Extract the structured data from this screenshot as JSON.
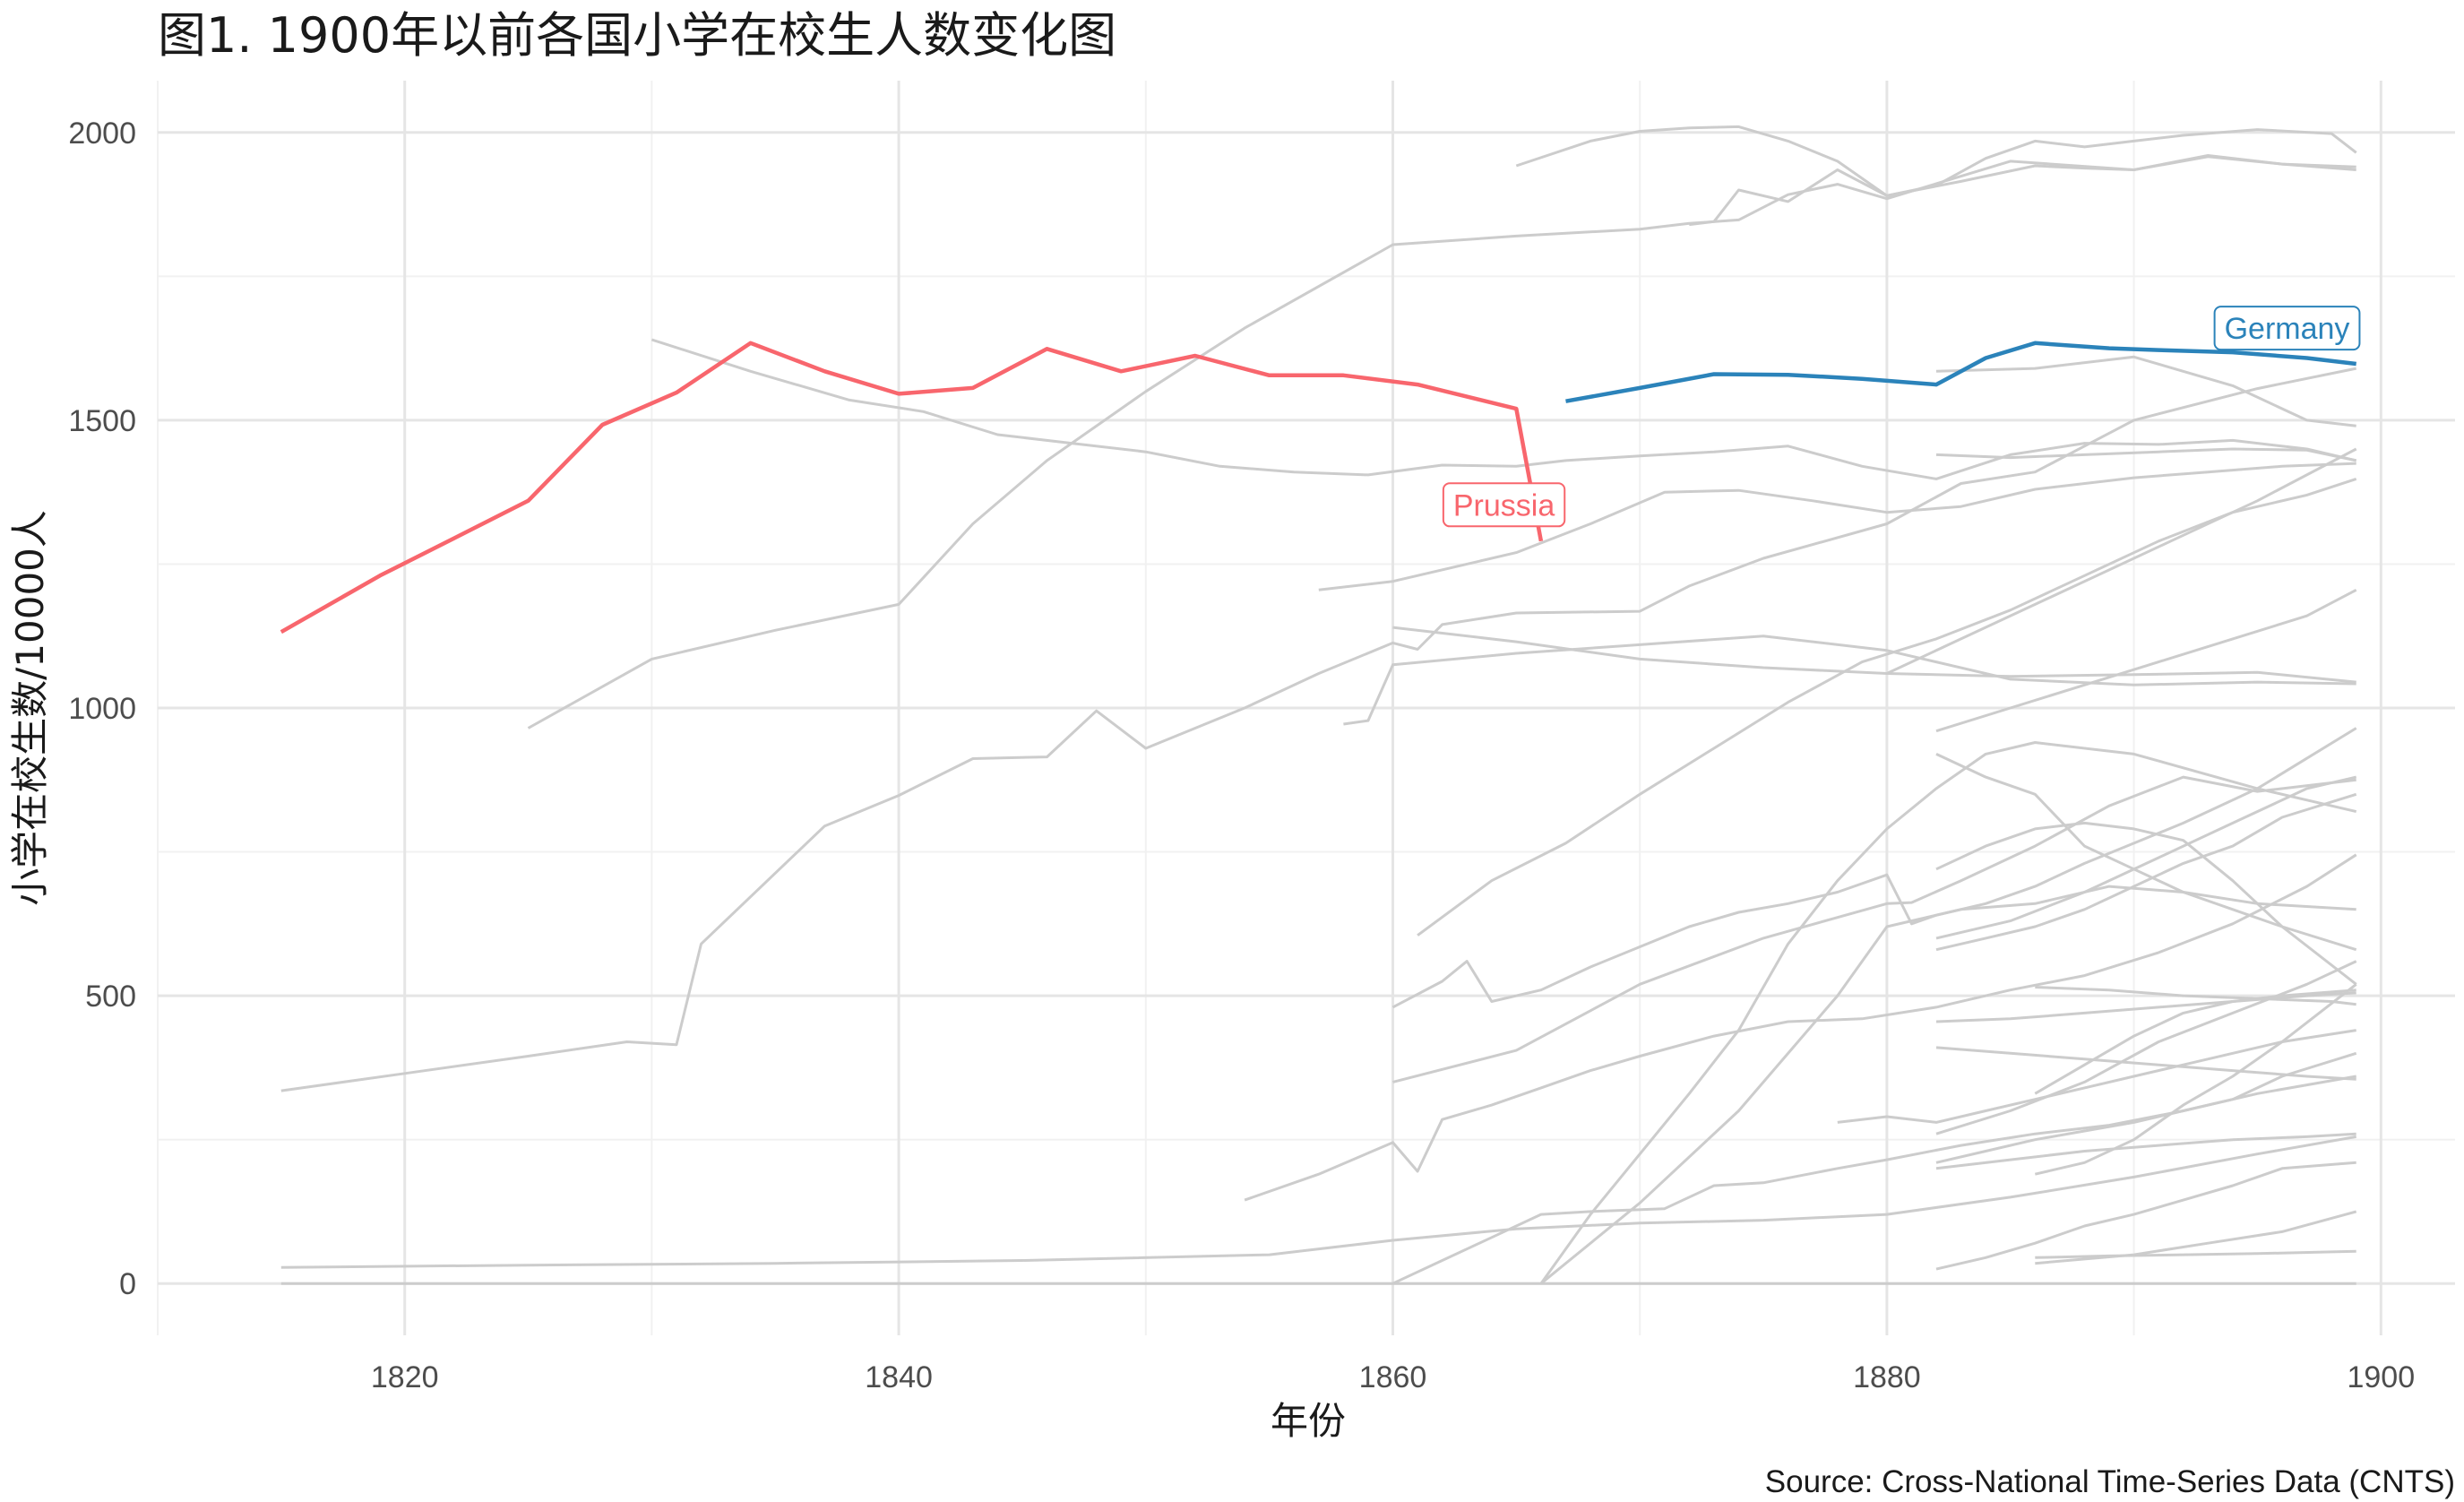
{
  "title": "图1. 1900年以前各国小学在校生人数变化图",
  "caption": "Source: Cross-National Time-Series Data (CNTS)",
  "chart_data": {
    "type": "line",
    "title": "图1. 1900年以前各国小学在校生人数变化图",
    "xlabel": "年份",
    "ylabel": "小学在校生数/10000人",
    "xlim": [
      1810,
      1903
    ],
    "ylim": [
      -90,
      2090
    ],
    "x_ticks": [
      1820,
      1840,
      1860,
      1880,
      1900
    ],
    "x_tick_labels": [
      "1820",
      "1840",
      "1860",
      "1880",
      "1900"
    ],
    "y_ticks": [
      0,
      500,
      1000,
      1500,
      2000
    ],
    "y_tick_labels": [
      "0",
      "500",
      "1000",
      "1500",
      "2000"
    ],
    "grid": true,
    "legend": "none",
    "colors": {
      "background_series": "#cccccc",
      "Prussia": "#f8666d",
      "Germany": "#2b83ba"
    },
    "highlighted": [
      {
        "label": "Prussia",
        "color": "#f8666d",
        "x": [
          1815,
          1819,
          1822,
          1825,
          1828,
          1831,
          1834,
          1837,
          1840,
          1843,
          1846,
          1849,
          1852,
          1855,
          1858,
          1861,
          1865,
          1866
        ],
        "y": [
          1132,
          1230,
          1295,
          1360,
          1492,
          1548,
          1634,
          1585,
          1546,
          1556,
          1624,
          1585,
          1612,
          1578,
          1578,
          1562,
          1520,
          1290
        ]
      },
      {
        "label": "Germany",
        "color": "#2b83ba",
        "x": [
          1867,
          1870,
          1873,
          1876,
          1879,
          1882,
          1884,
          1886,
          1889,
          1891,
          1894,
          1897,
          1899
        ],
        "y": [
          1533,
          1556,
          1580,
          1579,
          1572,
          1562,
          1608,
          1634,
          1625,
          1622,
          1618,
          1608,
          1598
        ]
      }
    ],
    "series": [
      {
        "x": [
          1865,
          1868,
          1870,
          1872,
          1874,
          1876,
          1878,
          1880,
          1883,
          1886,
          1888,
          1890,
          1893,
          1896,
          1899
        ],
        "y": [
          1942,
          1985,
          2002,
          2008,
          2010,
          1985,
          1950,
          1890,
          1915,
          1942,
          1938,
          1935,
          1958,
          1945,
          1935
        ]
      },
      {
        "x": [
          1872,
          1873,
          1874,
          1876,
          1878,
          1880,
          1882,
          1884,
          1886,
          1888,
          1890,
          1892,
          1895,
          1898,
          1899
        ],
        "y": [
          1840,
          1845,
          1900,
          1880,
          1935,
          1890,
          1908,
          1955,
          1985,
          1975,
          1985,
          1995,
          2005,
          1998,
          1965
        ]
      },
      {
        "x": [
          1830,
          1834,
          1838,
          1841,
          1844,
          1847,
          1850,
          1853,
          1856,
          1859,
          1862,
          1865,
          1867,
          1870,
          1873,
          1876,
          1879,
          1882,
          1885,
          1888,
          1891,
          1894,
          1897,
          1899
        ],
        "y": [
          1640,
          1585,
          1535,
          1515,
          1475,
          1460,
          1445,
          1420,
          1410,
          1405,
          1422,
          1420,
          1430,
          1438,
          1445,
          1455,
          1420,
          1398,
          1440,
          1460,
          1458,
          1465,
          1450,
          1430
        ]
      },
      {
        "x": [
          1825,
          1830,
          1835,
          1840,
          1843,
          1846,
          1850,
          1854,
          1860,
          1865,
          1870,
          1872,
          1874,
          1876,
          1878,
          1880,
          1885,
          1890,
          1893,
          1896,
          1899
        ],
        "y": [
          965,
          1085,
          1135,
          1180,
          1320,
          1430,
          1550,
          1660,
          1805,
          1820,
          1832,
          1842,
          1848,
          1892,
          1910,
          1885,
          1950,
          1935,
          1960,
          1945,
          1940
        ]
      },
      {
        "x": [
          1815,
          1820,
          1825,
          1829,
          1831,
          1832,
          1837,
          1840,
          1843,
          1846,
          1848,
          1850,
          1854,
          1857,
          1860,
          1861,
          1862,
          1865,
          1870,
          1872,
          1875,
          1880,
          1883,
          1886,
          1890,
          1895,
          1899
        ],
        "y": [
          335,
          365,
          395,
          420,
          415,
          590,
          795,
          848,
          912,
          915,
          995,
          930,
          1000,
          1060,
          1113,
          1102,
          1145,
          1165,
          1168,
          1212,
          1260,
          1320,
          1390,
          1410,
          1500,
          1555,
          1590
        ]
      },
      {
        "x": [
          1857,
          1860,
          1865,
          1868,
          1871,
          1874,
          1877,
          1880,
          1883,
          1886,
          1890,
          1893,
          1896,
          1899
        ],
        "y": [
          1205,
          1220,
          1270,
          1320,
          1375,
          1378,
          1360,
          1340,
          1350,
          1380,
          1400,
          1410,
          1420,
          1425
        ]
      },
      {
        "x": [
          1858,
          1859,
          1860,
          1865,
          1870,
          1875,
          1880,
          1885,
          1890,
          1895,
          1899
        ],
        "y": [
          972,
          978,
          1075,
          1095,
          1110,
          1125,
          1100,
          1050,
          1040,
          1045,
          1042
        ]
      },
      {
        "x": [
          1860,
          1865,
          1870,
          1875,
          1880,
          1885,
          1890,
          1895,
          1899
        ],
        "y": [
          1140,
          1115,
          1085,
          1070,
          1060,
          1055,
          1058,
          1062,
          1045
        ]
      },
      {
        "x": [
          1861,
          1864,
          1867,
          1870,
          1873,
          1876,
          1879,
          1882,
          1885,
          1888,
          1891,
          1894,
          1897,
          1899
        ],
        "y": [
          605,
          700,
          765,
          850,
          930,
          1010,
          1080,
          1120,
          1170,
          1230,
          1290,
          1340,
          1370,
          1398
        ]
      },
      {
        "x": [
          1854,
          1857,
          1860,
          1861,
          1862,
          1864,
          1866,
          1868,
          1870,
          1873,
          1876,
          1879,
          1882,
          1885,
          1888,
          1891,
          1894,
          1897,
          1899
        ],
        "y": [
          145,
          190,
          245,
          195,
          285,
          310,
          340,
          370,
          395,
          430,
          455,
          460,
          480,
          510,
          535,
          575,
          625,
          690,
          745
        ]
      },
      {
        "x": [
          1860,
          1862,
          1863,
          1864,
          1866,
          1868,
          1870,
          1872,
          1874,
          1876,
          1878,
          1880,
          1881,
          1882,
          1884,
          1886,
          1888,
          1890,
          1892,
          1895,
          1899
        ],
        "y": [
          480,
          525,
          560,
          490,
          510,
          550,
          585,
          620,
          645,
          660,
          680,
          710,
          625,
          640,
          660,
          690,
          730,
          765,
          800,
          860,
          965
        ]
      },
      {
        "x": [
          1860,
          1865,
          1870,
          1875,
          1880,
          1881,
          1883,
          1886,
          1889,
          1892,
          1895,
          1899
        ],
        "y": [
          350,
          405,
          520,
          600,
          660,
          662,
          700,
          760,
          830,
          880,
          855,
          875
        ]
      },
      {
        "x": [
          1860,
          1862,
          1864,
          1866,
          1868,
          1871,
          1873,
          1875,
          1878,
          1880,
          1883,
          1886,
          1889,
          1892,
          1895,
          1899
        ],
        "y": [
          0,
          40,
          80,
          120,
          125,
          130,
          170,
          175,
          200,
          215,
          240,
          260,
          275,
          300,
          330,
          360
        ]
      },
      {
        "x": [
          1815,
          1825,
          1835,
          1845,
          1855,
          1860,
          1865,
          1870,
          1875,
          1880,
          1885,
          1890,
          1895,
          1899
        ],
        "y": [
          28,
          32,
          35,
          40,
          50,
          75,
          95,
          105,
          110,
          120,
          150,
          185,
          225,
          255
        ]
      },
      {
        "x": [
          1866,
          1868,
          1870,
          1872,
          1874,
          1876,
          1878,
          1880,
          1882,
          1884,
          1886,
          1890,
          1895,
          1899
        ],
        "y": [
          0,
          120,
          225,
          330,
          440,
          590,
          700,
          790,
          860,
          920,
          940,
          920,
          860,
          820
        ]
      },
      {
        "x": [
          1866,
          1870,
          1874,
          1878,
          1880,
          1883,
          1886,
          1889,
          1892,
          1895,
          1899
        ],
        "y": [
          0,
          140,
          300,
          500,
          620,
          650,
          660,
          690,
          680,
          660,
          650
        ]
      },
      {
        "x": [
          1882,
          1884,
          1886,
          1888,
          1890,
          1892,
          1894,
          1896,
          1899
        ],
        "y": [
          920,
          880,
          850,
          760,
          720,
          680,
          650,
          620,
          580
        ]
      },
      {
        "x": [
          1882,
          1884,
          1886,
          1888,
          1890,
          1892,
          1894,
          1896,
          1899
        ],
        "y": [
          720,
          760,
          790,
          800,
          790,
          770,
          700,
          620,
          520
        ]
      },
      {
        "x": [
          1882,
          1885,
          1888,
          1891,
          1894,
          1897,
          1899
        ],
        "y": [
          600,
          630,
          680,
          740,
          800,
          860,
          880
        ]
      },
      {
        "x": [
          1882,
          1884,
          1886,
          1888,
          1890,
          1892,
          1894,
          1896,
          1899
        ],
        "y": [
          580,
          600,
          620,
          650,
          690,
          730,
          760,
          810,
          850
        ]
      },
      {
        "x": [
          1882,
          1885,
          1888,
          1891,
          1894,
          1897,
          1899
        ],
        "y": [
          455,
          460,
          470,
          480,
          490,
          500,
          505
        ]
      },
      {
        "x": [
          1882,
          1885,
          1888,
          1891,
          1894,
          1897,
          1899
        ],
        "y": [
          410,
          400,
          390,
          380,
          370,
          360,
          355
        ]
      },
      {
        "x": [
          1882,
          1885,
          1888,
          1891,
          1894,
          1897,
          1899
        ],
        "y": [
          260,
          300,
          350,
          420,
          470,
          520,
          560
        ]
      },
      {
        "x": [
          1882,
          1884,
          1886,
          1888,
          1890,
          1892,
          1894,
          1896,
          1899
        ],
        "y": [
          210,
          230,
          250,
          265,
          280,
          300,
          320,
          360,
          400
        ]
      },
      {
        "x": [
          1882,
          1885,
          1888,
          1891,
          1894,
          1897,
          1899
        ],
        "y": [
          200,
          215,
          230,
          240,
          250,
          255,
          260
        ]
      },
      {
        "x": [
          1882,
          1884,
          1886,
          1888,
          1890,
          1892,
          1894,
          1896,
          1899
        ],
        "y": [
          25,
          45,
          70,
          100,
          120,
          145,
          170,
          200,
          210
        ]
      },
      {
        "x": [
          1886,
          1889,
          1892,
          1895,
          1898,
          1899
        ],
        "y": [
          45,
          48,
          50,
          52,
          55,
          56
        ]
      },
      {
        "x": [
          1886,
          1890,
          1893,
          1896,
          1899
        ],
        "y": [
          35,
          50,
          70,
          90,
          125
        ]
      },
      {
        "x": [
          1886,
          1889,
          1892,
          1895,
          1898,
          1899
        ],
        "y": [
          515,
          510,
          500,
          495,
          490,
          485
        ]
      },
      {
        "x": [
          1886,
          1888,
          1890,
          1892,
          1894,
          1896,
          1899
        ],
        "y": [
          330,
          380,
          430,
          470,
          490,
          500,
          510
        ]
      },
      {
        "x": [
          1886,
          1888,
          1890,
          1892,
          1894,
          1896,
          1899
        ],
        "y": [
          190,
          210,
          250,
          310,
          360,
          420,
          520
        ]
      },
      {
        "x": [
          1878,
          1880,
          1882,
          1884,
          1886,
          1888,
          1890,
          1892,
          1894,
          1896,
          1899
        ],
        "y": [
          280,
          290,
          280,
          300,
          320,
          340,
          360,
          380,
          400,
          420,
          440
        ]
      },
      {
        "x": [
          1880,
          1883,
          1886,
          1889,
          1892,
          1895,
          1899
        ],
        "y": [
          1060,
          1120,
          1180,
          1240,
          1300,
          1360,
          1450
        ]
      },
      {
        "x": [
          1882,
          1885,
          1888,
          1891,
          1894,
          1897,
          1899
        ],
        "y": [
          960,
          1000,
          1040,
          1080,
          1120,
          1160,
          1205
        ]
      },
      {
        "x": [
          1882,
          1886,
          1890,
          1894,
          1897,
          1899
        ],
        "y": [
          1585,
          1590,
          1610,
          1560,
          1500,
          1490
        ]
      },
      {
        "x": [
          1882,
          1885,
          1888,
          1891,
          1894,
          1897,
          1899
        ],
        "y": [
          1440,
          1435,
          1440,
          1445,
          1450,
          1448,
          1430
        ]
      },
      {
        "x": [
          1815,
          1830,
          1850,
          1870,
          1890,
          1899
        ],
        "y": [
          0,
          0,
          0,
          0,
          0,
          0
        ]
      }
    ],
    "annotations": [
      {
        "text": "Prussia",
        "x": 1864.5,
        "y": 1353,
        "color": "#f8666d"
      },
      {
        "text": "Germany",
        "x": 1896.2,
        "y": 1660,
        "color": "#2b83ba"
      }
    ]
  }
}
